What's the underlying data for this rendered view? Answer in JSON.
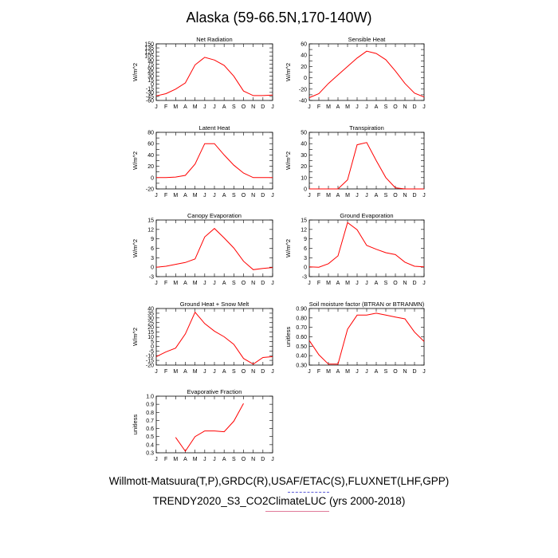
{
  "title": "Alaska (59-66.5N,170-140W)",
  "footer": {
    "line1": "Willmott-Matsuura(T,P),GRDC(R),USAF/ETAC(S),FLUXNET(LHF,GPP)",
    "line2": "TRENDY2020_S3_CO2ClimateLUC (yrs 2000-2018)"
  },
  "colors": {
    "series": "#ff0000",
    "axis": "#000000"
  },
  "chart_data": [
    {
      "type": "line",
      "title": "Net Radiation",
      "ylabel": "W/m^2",
      "categories": [
        "J",
        "F",
        "M",
        "A",
        "M",
        "J",
        "J",
        "A",
        "S",
        "O",
        "N",
        "D",
        "J"
      ],
      "ylim": [
        -60,
        150
      ],
      "yticks": [
        -60,
        -45,
        -30,
        -15,
        0,
        15,
        30,
        45,
        60,
        75,
        90,
        105,
        120,
        135,
        150
      ],
      "yticklabels": [
        "-60",
        "-45",
        "-30",
        "-15",
        "0",
        "15",
        "30",
        "45",
        "60",
        "75",
        "90",
        "105",
        "120",
        "135",
        "150"
      ],
      "values": [
        -43,
        -35,
        -18,
        5,
        72,
        100,
        90,
        70,
        30,
        -25,
        -42,
        -42,
        -40
      ]
    },
    {
      "type": "line",
      "title": "Sensible Heat",
      "ylabel": "W/m^2",
      "categories": [
        "J",
        "F",
        "M",
        "A",
        "M",
        "J",
        "J",
        "A",
        "S",
        "O",
        "N",
        "D",
        "J"
      ],
      "ylim": [
        -40,
        60
      ],
      "yticks": [
        -40,
        -30,
        -20,
        -10,
        0,
        10,
        20,
        30,
        40,
        50,
        60
      ],
      "yticklabels": [
        "-40",
        "",
        "-20",
        "",
        "0",
        "",
        "20",
        "",
        "40",
        "",
        "60"
      ],
      "values": [
        -35,
        -28,
        -10,
        5,
        20,
        35,
        47,
        43,
        32,
        12,
        -10,
        -27,
        -34
      ]
    },
    {
      "type": "line",
      "title": "Latent Heat",
      "ylabel": "W/m^2",
      "categories": [
        "J",
        "F",
        "M",
        "A",
        "M",
        "J",
        "J",
        "A",
        "S",
        "O",
        "N",
        "D",
        "J"
      ],
      "ylim": [
        -20,
        80
      ],
      "yticks": [
        -20,
        -10,
        0,
        10,
        20,
        30,
        40,
        50,
        60,
        70,
        80
      ],
      "yticklabels": [
        "-20",
        "",
        "0",
        "",
        "20",
        "",
        "40",
        "",
        "60",
        "",
        "80"
      ],
      "values": [
        0,
        0,
        1,
        4,
        24,
        60,
        60,
        40,
        22,
        8,
        0,
        0,
        0
      ]
    },
    {
      "type": "line",
      "title": "Transpiration",
      "ylabel": "W/m^2",
      "categories": [
        "J",
        "F",
        "M",
        "A",
        "M",
        "J",
        "J",
        "A",
        "S",
        "O",
        "N",
        "D",
        "J"
      ],
      "ylim": [
        0,
        50
      ],
      "yticks": [
        0,
        5,
        10,
        15,
        20,
        25,
        30,
        35,
        40,
        45,
        50
      ],
      "yticklabels": [
        "0",
        "",
        "10",
        "",
        "20",
        "",
        "30",
        "",
        "40",
        "",
        "50"
      ],
      "values": [
        0,
        0,
        0,
        0,
        8,
        39,
        41,
        25,
        10,
        1,
        0,
        0,
        0
      ]
    },
    {
      "type": "line",
      "title": "Canopy Evaporation",
      "ylabel": "W/m^2",
      "categories": [
        "J",
        "F",
        "M",
        "A",
        "M",
        "J",
        "J",
        "A",
        "S",
        "O",
        "N",
        "D",
        "J"
      ],
      "ylim": [
        -3,
        15
      ],
      "yticks": [
        -3,
        0,
        3,
        6,
        9,
        12,
        15
      ],
      "yticklabels": [
        "-3",
        "0",
        "3",
        "6",
        "9",
        "12",
        "15"
      ],
      "values": [
        0,
        0.3,
        0.9,
        1.5,
        2.6,
        9.6,
        12.3,
        9.3,
        6.1,
        1.9,
        -0.8,
        -0.4,
        -0.1
      ]
    },
    {
      "type": "line",
      "title": "Ground Evaporation",
      "ylabel": "W/m^2",
      "categories": [
        "J",
        "F",
        "M",
        "A",
        "M",
        "J",
        "J",
        "A",
        "S",
        "O",
        "N",
        "D",
        "J"
      ],
      "ylim": [
        -3,
        15
      ],
      "yticks": [
        -3,
        0,
        3,
        6,
        9,
        12,
        15
      ],
      "yticklabels": [
        "-3",
        "0",
        "3",
        "6",
        "9",
        "12",
        "15"
      ],
      "values": [
        0.1,
        0,
        1.1,
        3.6,
        14.2,
        11.9,
        6.9,
        5.7,
        4.6,
        4,
        1.6,
        0.3,
        0.1
      ]
    },
    {
      "type": "line",
      "title": "Ground Heat + Snow Melt",
      "ylabel": "W/m^2",
      "categories": [
        "J",
        "F",
        "M",
        "A",
        "M",
        "J",
        "J",
        "A",
        "S",
        "O",
        "N",
        "D",
        "J"
      ],
      "ylim": [
        -20,
        40
      ],
      "yticks": [
        -20,
        -15,
        -10,
        -5,
        0,
        5,
        10,
        15,
        20,
        25,
        30,
        35,
        40
      ],
      "yticklabels": [
        "-20",
        "-15",
        "-10",
        "-5",
        "0",
        "5",
        "10",
        "15",
        "20",
        "25",
        "30",
        "35",
        "40"
      ],
      "values": [
        -11,
        -6,
        -2,
        13,
        36,
        24,
        16,
        10,
        2,
        -13,
        -19,
        -12,
        -11
      ]
    },
    {
      "type": "line",
      "title": "Soil moisture factor (BTRAN or BTRANMN)",
      "ylabel": "unitless",
      "categories": [
        "J",
        "F",
        "M",
        "A",
        "M",
        "J",
        "J",
        "A",
        "S",
        "O",
        "N",
        "D",
        "J"
      ],
      "ylim": [
        0.3,
        0.9
      ],
      "yticks": [
        0.3,
        0.4,
        0.5,
        0.6,
        0.7,
        0.8,
        0.9
      ],
      "yticklabels": [
        "0.30",
        "0.40",
        "0.50",
        "0.60",
        "0.70",
        "0.80",
        "0.90"
      ],
      "values": [
        0.56,
        0.41,
        0.31,
        0.31,
        0.68,
        0.83,
        0.83,
        0.85,
        0.83,
        0.81,
        0.79,
        0.65,
        0.55
      ]
    },
    {
      "type": "line",
      "title": "Evaporative Fraction",
      "ylabel": "unitless",
      "categories": [
        "J",
        "F",
        "M",
        "A",
        "M",
        "J",
        "J",
        "A",
        "S",
        "O",
        "N",
        "D",
        "J"
      ],
      "ylim": [
        0.3,
        1.0
      ],
      "yticks": [
        0.3,
        0.4,
        0.5,
        0.6,
        0.7,
        0.8,
        0.9,
        1.0
      ],
      "yticklabels": [
        "0.3",
        "0.4",
        "0.5",
        "0.6",
        "0.7",
        "0.8",
        "0.9",
        "1.0"
      ],
      "values": [
        null,
        null,
        0.49,
        0.32,
        0.5,
        0.57,
        0.57,
        0.56,
        0.69,
        0.91,
        null,
        null,
        null
      ]
    }
  ]
}
